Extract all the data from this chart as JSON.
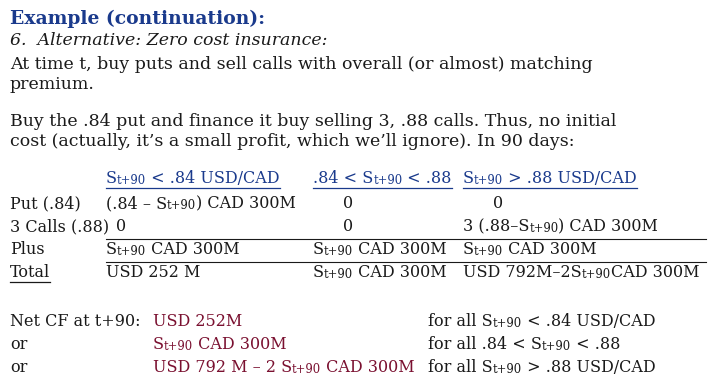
{
  "background": "#ffffff",
  "blue": "#1a3a8c",
  "dark_red": "#7a1030",
  "black": "#1a1a1a",
  "font_serif": "DejaVu Serif",
  "title1": "Example (continuation):",
  "title2": "6.  Alternative: Zero cost insurance:",
  "para1a": "At time t, buy puts and sell calls with overall (or almost) matching",
  "para1b": "premium.",
  "para2a": "Buy the .84 put and finance it buy selling 3, .88 calls. Thus, no initial",
  "para2b": "cost (actually, it’s a small profit, which we’ll ignore). In 90 days:",
  "fs_title": 13.5,
  "fs_body": 12.5,
  "fs_table": 11.5,
  "fs_sub": 8.5
}
